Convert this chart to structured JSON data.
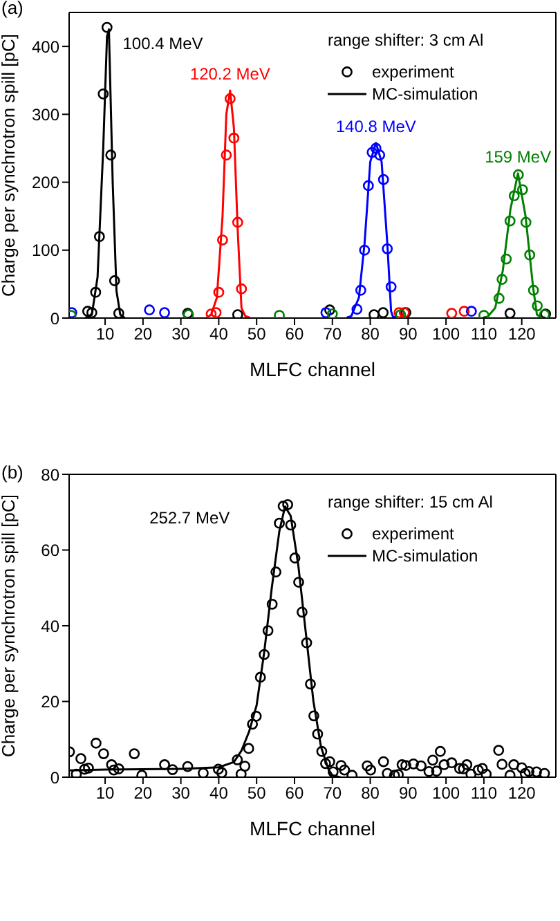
{
  "chart_data": [
    {
      "type": "scatter",
      "title": "(a)",
      "xlabel": "MLFC channel",
      "ylabel": "Charge per synchrotron spill [pC]",
      "legend_title": "range shifter: 3 cm Al",
      "legend": "top right",
      "xlim": [
        0.5,
        129
      ],
      "ylim": [
        0,
        450
      ],
      "xticks": [
        10,
        20,
        30,
        40,
        50,
        60,
        70,
        80,
        90,
        100,
        110,
        120
      ],
      "yticks": [
        0,
        100,
        200,
        300,
        400
      ],
      "annotations": [
        "100.4 MeV",
        "120.2 MeV",
        "140.8 MeV",
        "159 MeV"
      ],
      "series": [
        {
          "name": "experiment",
          "marker": "circle",
          "color": "#000000",
          "x": [
            5.4,
            6.5,
            7.5,
            8.5,
            9.5,
            10.5,
            11.5,
            12.5,
            13.6,
            31.8,
            45,
            69.3,
            81,
            83.4,
            89.4,
            116.9,
            126.3
          ],
          "values": [
            10,
            8,
            38,
            120,
            330,
            428,
            240,
            55,
            7,
            7,
            5,
            12,
            5,
            8,
            8,
            7,
            6
          ]
        },
        {
          "name": "MC-simulation",
          "type": "line",
          "marker": "none",
          "line_style": "solid",
          "color": "#000000",
          "x": [
            5,
            6.5,
            8,
            9.5,
            10.5,
            11,
            12,
            13,
            14,
            15
          ],
          "values": [
            1,
            5,
            60,
            250,
            415,
            425,
            200,
            40,
            5,
            1
          ]
        },
        {
          "marker": "circle",
          "color": "#ff0000",
          "x": [
            38,
            39.3,
            40,
            41,
            42,
            43,
            44,
            45,
            46,
            87.6,
            89,
            101.5,
            104.8
          ],
          "values": [
            6,
            8,
            38,
            115,
            240,
            323,
            265,
            141,
            43,
            8,
            8,
            7,
            10
          ]
        },
        {
          "type": "line",
          "marker": "none",
          "line_style": "solid",
          "color": "#ff0000",
          "x": [
            37,
            38,
            39.5,
            41,
            42,
            43,
            44,
            45,
            46,
            47,
            48
          ],
          "values": [
            1,
            5,
            30,
            150,
            300,
            335,
            280,
            130,
            15,
            3,
            1
          ]
        },
        {
          "marker": "circle",
          "color": "#0000ff",
          "x": [
            1.2,
            21.7,
            25.7,
            68.3,
            76.5,
            77.5,
            78.5,
            79.5,
            80.5,
            81.5,
            82.5,
            83.5,
            84.5,
            85.5,
            106.7
          ],
          "values": [
            8,
            12,
            8,
            8,
            13,
            41,
            100,
            195,
            244,
            250,
            240,
            204,
            102,
            46,
            10
          ]
        },
        {
          "type": "line",
          "marker": "none",
          "line_style": "solid",
          "color": "#0000ff",
          "x": [
            74,
            75,
            77,
            78.5,
            80,
            81.5,
            83,
            84.5,
            85.5,
            86,
            87
          ],
          "values": [
            1,
            3,
            30,
            110,
            230,
            258,
            230,
            110,
            10,
            2,
            1
          ]
        },
        {
          "marker": "circle",
          "color": "#008000",
          "x": [
            1,
            32,
            56,
            70,
            88,
            110,
            114,
            114.8,
            115.9,
            116.9,
            118,
            119.1,
            120.2,
            121.1,
            122.1,
            123.1,
            124.1,
            126
          ],
          "values": [
            4,
            5,
            4,
            6,
            5,
            4,
            29,
            57,
            87,
            143,
            180,
            211,
            189,
            141,
            93,
            41,
            18,
            5
          ]
        },
        {
          "type": "line",
          "marker": "none",
          "line_style": "solid",
          "color": "#008000",
          "x": [
            110,
            111,
            113,
            115,
            117,
            119,
            121,
            123,
            124,
            125,
            126
          ],
          "values": [
            1,
            2,
            15,
            70,
            160,
            213,
            150,
            45,
            5,
            1,
            1
          ]
        }
      ]
    },
    {
      "type": "scatter",
      "title": "(b)",
      "xlabel": "MLFC channel",
      "ylabel": "Charge per synchrotron spill [pC]",
      "legend_title": "range shifter: 15 cm Al",
      "legend": "top right",
      "xlim": [
        0.5,
        129
      ],
      "ylim": [
        0,
        80
      ],
      "xticks": [
        10,
        20,
        30,
        40,
        50,
        60,
        70,
        80,
        90,
        100,
        110,
        120
      ],
      "yticks": [
        0,
        20,
        40,
        60,
        80
      ],
      "annotations": [
        "252.7 MeV"
      ],
      "series": [
        {
          "name": "experiment",
          "marker": "circle",
          "color": "#000000",
          "x": [
            0.6,
            2.4,
            3.6,
            4.6,
            5.6,
            7.6,
            9.6,
            11.7,
            12.3,
            13.6,
            17.7,
            19.7,
            25.7,
            27.8,
            31.8,
            35.9,
            39.9,
            40.8,
            44.9,
            45.9,
            46.9,
            47.9,
            48.9,
            49.9,
            51,
            52,
            53,
            54.1,
            55.1,
            56,
            57,
            58.2,
            59,
            60.1,
            61.1,
            62,
            63.2,
            64.2,
            65.1,
            66.1,
            67.2,
            68.2,
            69.3,
            70.2,
            72.3,
            73.2,
            75.2,
            79.2,
            80.1,
            83.5,
            84.5,
            86.4,
            87.4,
            88.4,
            89.4,
            91.4,
            93.4,
            95.5,
            96.5,
            97.5,
            98.5,
            99.5,
            101.5,
            103.6,
            104.6,
            105.5,
            106.6,
            108.5,
            109.6,
            110.6,
            113.9,
            114.8,
            116.9,
            117.9,
            120,
            120.9,
            121.9,
            123.9,
            126
          ],
          "values": [
            6.7,
            0.8,
            4.9,
            2.1,
            2.4,
            9,
            6.2,
            3.3,
            1.9,
            2.2,
            6.2,
            0.5,
            3.3,
            2,
            2.8,
            1.1,
            2.1,
            1.2,
            4.6,
            0.8,
            2.9,
            7.6,
            14,
            16.1,
            26.4,
            32.4,
            38.7,
            45.7,
            54.2,
            67.1,
            71.6,
            72,
            66.6,
            57.9,
            51.5,
            43.6,
            35.5,
            24.6,
            16.2,
            11.4,
            6.8,
            3.6,
            4.1,
            1.4,
            3.1,
            1.9,
            0.5,
            3,
            1.9,
            4.1,
            1,
            0.5,
            0.7,
            3.3,
            3.1,
            3.5,
            3,
            1.5,
            4.5,
            1.6,
            6.8,
            3.3,
            3.8,
            2.3,
            2.2,
            3.3,
            0.8,
            1.9,
            2.3,
            0.8,
            7.1,
            3.4,
            0.5,
            3.3,
            2.5,
            1,
            1.5,
            1.4,
            1
          ]
        },
        {
          "name": "MC-simulation",
          "type": "line",
          "marker": "none",
          "line_style": "solid",
          "color": "#000000",
          "x": [
            0.5,
            10,
            20,
            30,
            40,
            44,
            46,
            48,
            50,
            52,
            54,
            56,
            57.5,
            59,
            61,
            63,
            65,
            67,
            69,
            70,
            72
          ],
          "values": [
            1.8,
            2,
            2.1,
            2.2,
            2.6,
            4,
            7,
            12,
            19,
            33,
            50,
            65,
            71.5,
            69,
            56,
            38,
            20,
            8,
            2,
            0.5,
            0
          ]
        }
      ]
    }
  ]
}
